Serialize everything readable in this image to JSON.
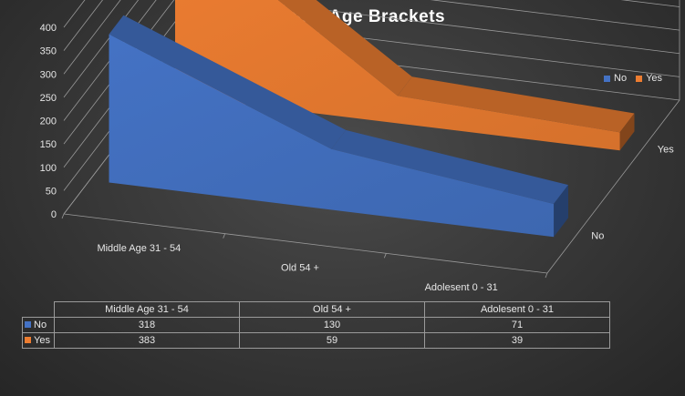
{
  "chart_data": {
    "type": "3d-line",
    "title": "Customer Age Brackets",
    "categories": [
      "Middle Age 31 - 54",
      "Old 54 +",
      "Adolesent 0 - 31"
    ],
    "series": [
      {
        "name": "No",
        "values": [
          318,
          130,
          71
        ],
        "color": "#4472c4"
      },
      {
        "name": "Yes",
        "values": [
          383,
          59,
          39
        ],
        "color": "#ed7d31"
      }
    ],
    "depth_labels": [
      "No",
      "Yes"
    ],
    "ylim": [
      0,
      400
    ],
    "yticks": [
      "0",
      "50",
      "100",
      "150",
      "200",
      "250",
      "300",
      "350",
      "400"
    ],
    "grid": true,
    "legend_position": "top-right",
    "data_table": true
  },
  "colors": {
    "background": "#3a3a3a",
    "text": "#e6e6e6",
    "grid": "#9a9a9a"
  }
}
